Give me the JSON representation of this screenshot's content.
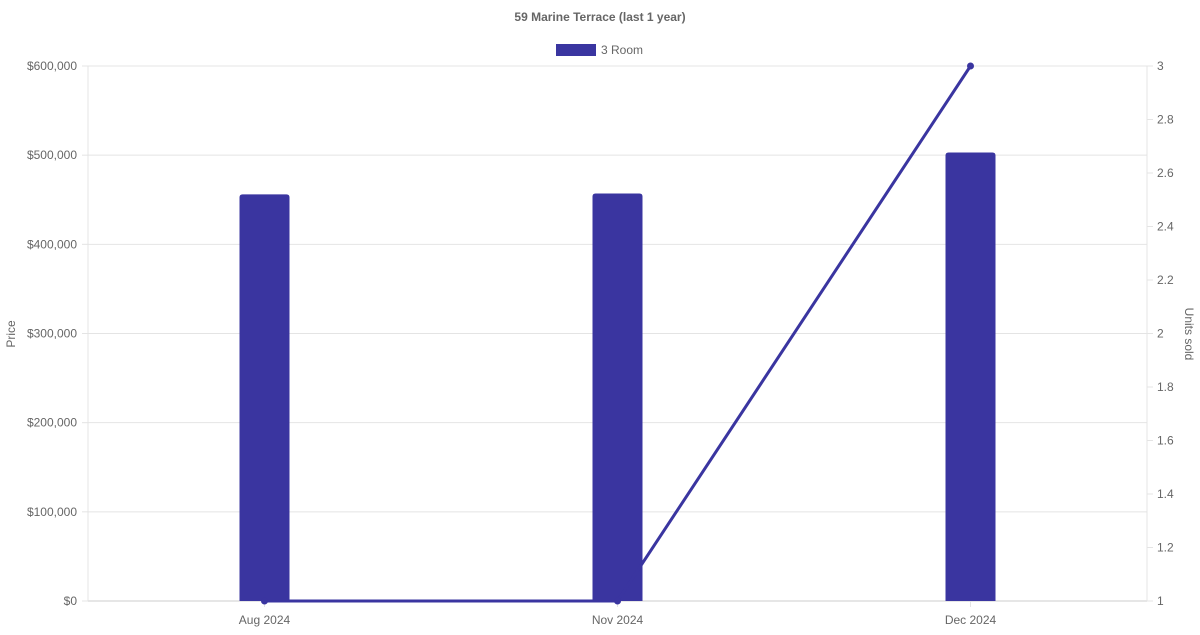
{
  "chart_data": {
    "type": "bar",
    "title": "59 Marine Terrace (last 1 year)",
    "categories": [
      "Aug 2024",
      "Nov 2024",
      "Dec 2024"
    ],
    "series": [
      {
        "name": "3 Room",
        "type": "bar",
        "axis": "left",
        "values": [
          456000,
          457000,
          503000
        ],
        "color": "#3a35a0"
      },
      {
        "type": "line",
        "axis": "right",
        "values": [
          1,
          1,
          3
        ],
        "color": "#3a35a0"
      }
    ],
    "ylabel": "Price",
    "y2label": "Units sold",
    "ylim": [
      0,
      600000
    ],
    "y2lim": [
      1,
      3
    ],
    "yticks": [
      "$0",
      "$100,000",
      "$200,000",
      "$300,000",
      "$400,000",
      "$500,000",
      "$600,000"
    ],
    "y2ticks": [
      "1",
      "1.2",
      "1.4",
      "1.6",
      "1.8",
      "2",
      "2.2",
      "2.4",
      "2.6",
      "2.8",
      "3"
    ],
    "grid": true,
    "legend": "top-center"
  }
}
